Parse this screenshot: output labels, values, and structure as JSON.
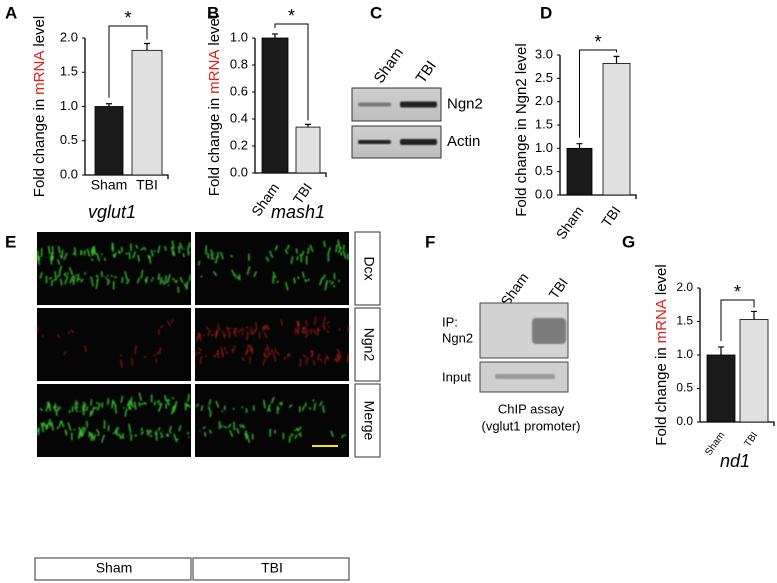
{
  "chart_data": [
    {
      "type": "bar",
      "panel": "A",
      "y_label": [
        {
          "text": "Fold change in",
          "color": "#000000"
        },
        {
          "text": "mRNA",
          "color": "#e0201b"
        },
        {
          "text": "level",
          "color": "#000000"
        }
      ],
      "x_label": "vglut1",
      "x_label_color": "#e0201b",
      "categories": [
        "Sham",
        "TBI"
      ],
      "values": [
        1.0,
        1.82
      ],
      "errors": [
        0.04,
        0.1
      ],
      "colors": [
        "#1a1a1a",
        "#e0e0e0"
      ],
      "ylim": [
        0,
        2.0
      ],
      "yticks": [
        {
          "value": 0,
          "label": "0.0"
        },
        {
          "value": 0.5,
          "label": "0.5"
        },
        {
          "value": 1,
          "label": "1.0"
        },
        {
          "value": 1.5,
          "label": "1.5"
        },
        {
          "value": 2,
          "label": "2.0"
        }
      ],
      "significance": "*"
    },
    {
      "type": "bar",
      "panel": "B",
      "y_label": [
        {
          "text": "Fold change in",
          "color": "#000000"
        },
        {
          "text": "mRNA",
          "color": "#e0201b"
        },
        {
          "text": "level",
          "color": "#000000"
        }
      ],
      "x_label": "mash1",
      "x_label_color": "#e0201b",
      "categories": [
        "Sham",
        "TBI"
      ],
      "values": [
        1.0,
        0.34
      ],
      "errors": [
        0.03,
        0.02
      ],
      "colors": [
        "#1a1a1a",
        "#e0e0e0"
      ],
      "ylim": [
        0,
        1.0
      ],
      "yticks": [
        {
          "value": 0,
          "label": "0.0"
        },
        0.2,
        0.4,
        0.6,
        0.8,
        {
          "value": 1,
          "label": "1.0"
        }
      ],
      "significance": "*"
    },
    {
      "type": "bar",
      "panel": "D",
      "y_label": [
        {
          "text": "Fold change in Ngn2 level",
          "color": "#000000"
        }
      ],
      "categories": [
        "Sham",
        "TBI"
      ],
      "values": [
        1.0,
        2.82
      ],
      "errors": [
        0.1,
        0.15
      ],
      "colors": [
        "#1a1a1a",
        "#e0e0e0"
      ],
      "ylim": [
        0,
        3.0
      ],
      "yticks": [
        {
          "value": 0,
          "label": "0.0"
        },
        0.5,
        {
          "value": 1,
          "label": "1.0"
        },
        1.5,
        {
          "value": 2,
          "label": "2.0"
        },
        2.5,
        {
          "value": 3,
          "label": "3.0"
        }
      ],
      "significance": "*"
    },
    {
      "type": "bar",
      "panel": "G",
      "y_label": [
        {
          "text": "Fold change in",
          "color": "#000000"
        },
        {
          "text": "mRNA",
          "color": "#e0201b"
        },
        {
          "text": "level",
          "color": "#000000"
        }
      ],
      "x_label": "nd1",
      "x_label_color": "#e0201b",
      "categories": [
        "Sham",
        "TBI"
      ],
      "values": [
        1.0,
        1.53
      ],
      "errors": [
        0.12,
        0.12
      ],
      "colors": [
        "#1a1a1a",
        "#e0e0e0"
      ],
      "ylim": [
        0,
        2.0
      ],
      "yticks": [
        {
          "value": 0,
          "label": "0.0"
        },
        0.5,
        {
          "value": 1,
          "label": "1.0"
        },
        1.5,
        {
          "value": 2,
          "label": "2.0"
        }
      ],
      "significance": "*"
    }
  ],
  "western_blot": {
    "panel": "C",
    "lanes": [
      "Sham",
      "TBI"
    ],
    "rows": [
      "Ngn2",
      "Actin"
    ]
  },
  "immunostaining": {
    "panel": "E",
    "channels": [
      {
        "name": "Dcx",
        "color": "#22a31f"
      },
      {
        "name": "Ngn2",
        "color": "#e0201b"
      },
      {
        "name": "Merge",
        "color": "#000000"
      }
    ],
    "conditions": [
      "Sham",
      "TBI"
    ]
  },
  "chip": {
    "panel": "F",
    "lanes": [
      "Sham",
      "TBI"
    ],
    "rows": [
      [
        "IP:",
        "Ngn2"
      ],
      [
        "Input"
      ]
    ],
    "caption": [
      "ChIP assay",
      "(vglut1 promoter)"
    ],
    "caption_color": "#3b4fc4"
  }
}
